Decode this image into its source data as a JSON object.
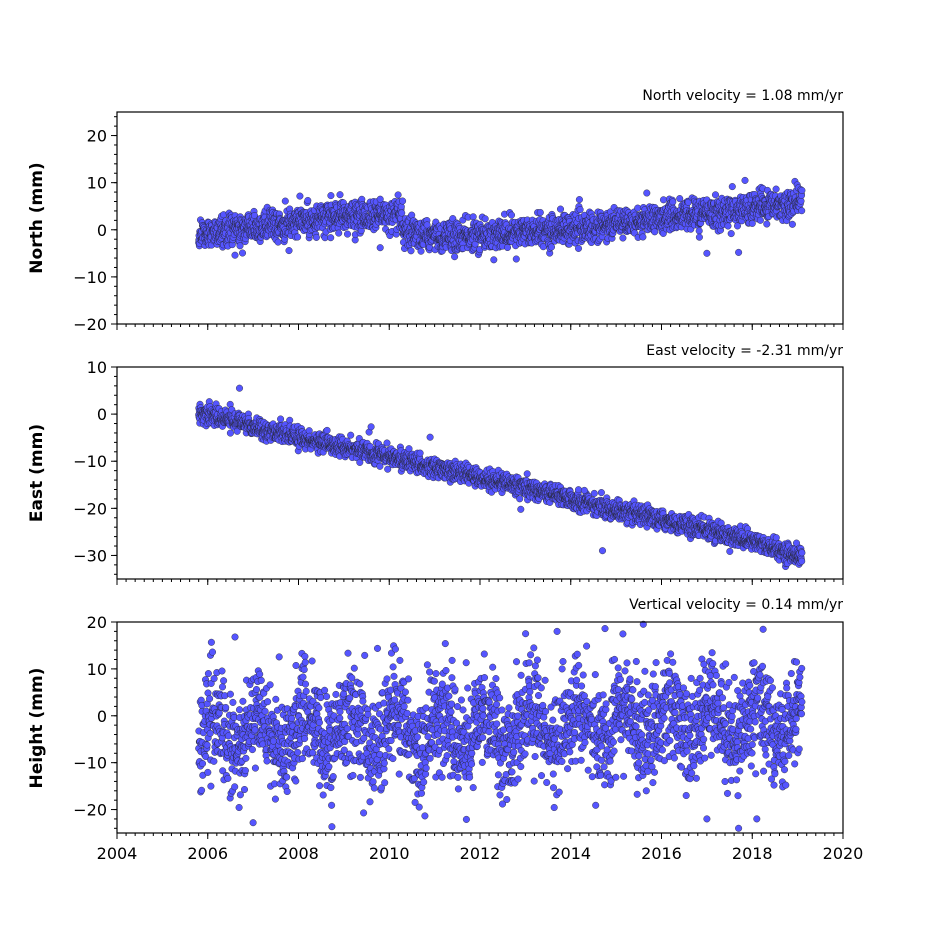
{
  "chart_data": [
    {
      "type": "scatter",
      "title": "North velocity = 1.08 mm/yr",
      "ylabel": "North (mm)",
      "xlim": [
        2004,
        2020
      ],
      "ylim": [
        -20,
        25
      ],
      "yticks": [
        -20,
        -10,
        0,
        10,
        20
      ],
      "yminor_step": 2,
      "show_xtick_labels": false,
      "marker_color": "#5555ff",
      "series": [
        {
          "segment": "2005.8-2010.3",
          "x_range": [
            2005.8,
            2010.3
          ],
          "anchors": [
            [
              2005.8,
              -1.0
            ],
            [
              2006.5,
              0.0
            ],
            [
              2007.5,
              1.0
            ],
            [
              2008.5,
              2.5
            ],
            [
              2009.5,
              3.0
            ],
            [
              2010.3,
              2.8
            ]
          ],
          "scatter_sd": 1.6
        },
        {
          "segment": "2010.3-2019.1",
          "x_range": [
            2010.3,
            2019.1
          ],
          "anchors": [
            [
              2010.3,
              -1.0
            ],
            [
              2011.5,
              -1.5
            ],
            [
              2013.0,
              -0.5
            ],
            [
              2014.5,
              0.5
            ],
            [
              2016.0,
              2.5
            ],
            [
              2017.5,
              4.0
            ],
            [
              2019.1,
              6.0
            ]
          ],
          "scatter_sd": 1.6
        }
      ],
      "outliers": [
        [
          2006.6,
          -5.4
        ],
        [
          2009.8,
          -3.8
        ],
        [
          2012.8,
          -6.2
        ],
        [
          2017.0,
          -5.0
        ],
        [
          2017.7,
          -4.8
        ],
        [
          2009.8,
          6.5
        ]
      ]
    },
    {
      "type": "scatter",
      "title": "East velocity = -2.31 mm/yr",
      "ylabel": "East (mm)",
      "xlim": [
        2004,
        2020
      ],
      "ylim": [
        -35,
        10
      ],
      "yticks": [
        -30,
        -20,
        -10,
        0,
        10
      ],
      "yminor_step": 2,
      "show_xtick_labels": false,
      "marker_color": "#5555ff",
      "series": [
        {
          "segment": "2005.8-2019.1",
          "x_range": [
            2005.8,
            2019.1
          ],
          "anchors": [
            [
              2005.8,
              0.5
            ],
            [
              2007.0,
              -2.5
            ],
            [
              2008.0,
              -5.0
            ],
            [
              2009.0,
              -7.0
            ],
            [
              2010.0,
              -9.0
            ],
            [
              2011.0,
              -11.5
            ],
            [
              2012.0,
              -13.5
            ],
            [
              2013.0,
              -15.5
            ],
            [
              2014.0,
              -18.0
            ],
            [
              2015.0,
              -20.5
            ],
            [
              2016.0,
              -22.5
            ],
            [
              2017.0,
              -24.5
            ],
            [
              2018.0,
              -27.0
            ],
            [
              2019.1,
              -30.5
            ]
          ],
          "scatter_sd": 1.0
        }
      ],
      "outliers": [
        [
          2006.7,
          5.5
        ],
        [
          2009.6,
          -2.7
        ],
        [
          2010.9,
          -4.9
        ],
        [
          2012.9,
          -20.2
        ],
        [
          2014.7,
          -29.0
        ],
        [
          2014.3,
          -16.2
        ]
      ]
    },
    {
      "type": "scatter",
      "title": "Vertical velocity = 0.14 mm/yr",
      "ylabel": "Height (mm)",
      "xlim": [
        2004,
        2020
      ],
      "ylim": [
        -25,
        20
      ],
      "yticks": [
        -20,
        -10,
        0,
        10,
        20
      ],
      "yminor_step": 2,
      "xticks": [
        2004,
        2006,
        2008,
        2010,
        2012,
        2014,
        2016,
        2018,
        2020
      ],
      "xminor_step": 0.2,
      "show_xtick_labels": true,
      "marker_color": "#5555ff",
      "series": [
        {
          "segment": "2005.8-2019.1",
          "x_range": [
            2005.8,
            2019.1
          ],
          "anchors": [
            [
              2005.8,
              -4.0
            ],
            [
              2008.0,
              -3.5
            ],
            [
              2010.0,
              -3.0
            ],
            [
              2012.0,
              -3.0
            ],
            [
              2014.0,
              -2.0
            ],
            [
              2016.0,
              -1.5
            ],
            [
              2018.0,
              -1.0
            ],
            [
              2019.1,
              -1.0
            ]
          ],
          "seasonal_amplitude": 4.0,
          "scatter_sd": 5.5
        }
      ],
      "outliers": [
        [
          2013.7,
          18.0
        ],
        [
          2015.6,
          19.5
        ],
        [
          2007.0,
          -22.8
        ],
        [
          2017.0,
          -22.0
        ],
        [
          2017.7,
          -24.0
        ],
        [
          2018.1,
          -22.0
        ],
        [
          2006.6,
          16.8
        ]
      ]
    }
  ]
}
